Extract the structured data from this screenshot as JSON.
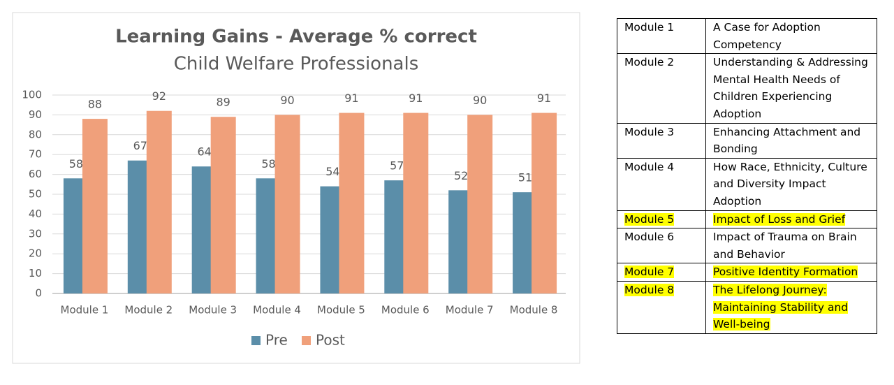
{
  "chart_data": {
    "type": "bar",
    "title": "Learning Gains - Average % correct",
    "subtitle": "Child Welfare Professionals",
    "categories": [
      "Module 1",
      "Module 2",
      "Module 3",
      "Module 4",
      "Module 5",
      "Module 6",
      "Module 7",
      "Module 8"
    ],
    "series": [
      {
        "name": "Pre",
        "color": "#5b8ea9",
        "values": [
          58,
          67,
          64,
          58,
          54,
          57,
          52,
          51
        ]
      },
      {
        "name": "Post",
        "color": "#f0a07b",
        "values": [
          88,
          92,
          89,
          90,
          91,
          91,
          90,
          91
        ]
      }
    ],
    "ylim": [
      0,
      100
    ],
    "yticks": [
      0,
      10,
      20,
      30,
      40,
      50,
      60,
      70,
      80,
      90,
      100
    ],
    "grid": true,
    "legend": "bottom"
  },
  "table": {
    "highlight_color": "#ffff00",
    "rows": [
      {
        "module": "Module 1",
        "title": "A Case for Adoption Competency",
        "highlighted": false
      },
      {
        "module": "Module 2",
        "title": "Understanding & Addressing Mental Health Needs of Children Experiencing Adoption",
        "highlighted": false
      },
      {
        "module": "Module 3",
        "title": "Enhancing Attachment and Bonding",
        "highlighted": false
      },
      {
        "module": "Module 4",
        "title": "How Race, Ethnicity, Culture and Diversity Impact Adoption",
        "highlighted": false
      },
      {
        "module": "Module 5",
        "title": "Impact of Loss and Grief",
        "highlighted": true
      },
      {
        "module": "Module 6",
        "title": "Impact of Trauma on Brain and Behavior",
        "highlighted": false
      },
      {
        "module": "Module 7",
        "title": "Positive Identity Formation",
        "highlighted": true
      },
      {
        "module": "Module 8",
        "title": "The Lifelong Journey: Maintaining Stability and Well-being",
        "highlighted": true
      }
    ]
  }
}
